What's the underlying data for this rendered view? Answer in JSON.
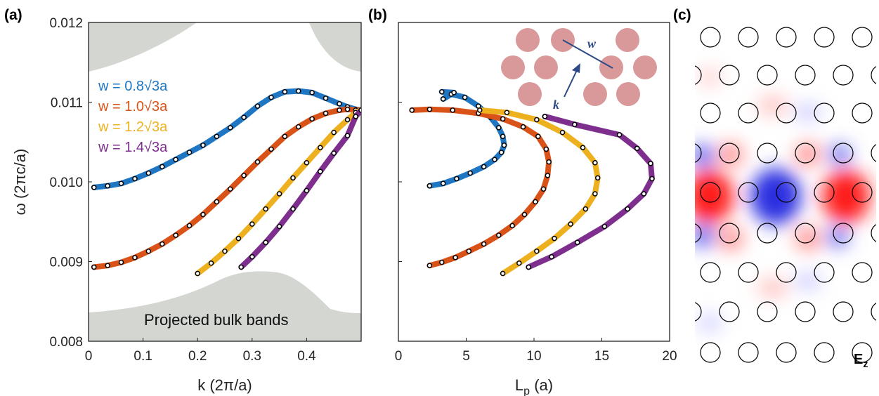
{
  "panels": {
    "a": "(a)",
    "b": "(b)",
    "c": "(c)"
  },
  "colors": {
    "w08": "#1f77c4",
    "w10": "#d95319",
    "w12": "#edb120",
    "w14": "#7e2f8e",
    "bulk": "#d4d6d1"
  },
  "chart_data": [
    {
      "panel": "(a)",
      "type": "line",
      "xlabel": "k (2π/a)",
      "ylabel": "ω (2πc/a)",
      "xlim": [
        0,
        0.5
      ],
      "ylim": [
        0.008,
        0.012
      ],
      "xticks": [
        "0",
        "0.1",
        "0.2",
        "0.3",
        "0.4"
      ],
      "yticks": [
        "0.008",
        "0.009",
        "0.010",
        "0.011",
        "0.012"
      ],
      "annotation": "Projected bulk bands",
      "series": [
        {
          "name": "w = 0.8√3a",
          "color": "#1f77c4",
          "x": [
            0.01,
            0.035,
            0.06,
            0.085,
            0.11,
            0.135,
            0.16,
            0.185,
            0.21,
            0.235,
            0.26,
            0.285,
            0.31,
            0.335,
            0.36,
            0.385,
            0.41,
            0.435,
            0.46,
            0.475,
            0.49,
            0.5
          ],
          "y": [
            0.00993,
            0.00995,
            0.00998,
            0.01004,
            0.01011,
            0.01019,
            0.01028,
            0.01037,
            0.01046,
            0.01057,
            0.01068,
            0.01081,
            0.01095,
            0.01106,
            0.01113,
            0.01114,
            0.01112,
            0.01105,
            0.01098,
            0.01094,
            0.01091,
            0.0109
          ]
        },
        {
          "name": "w = 1.0√3a",
          "color": "#d95319",
          "x": [
            0.01,
            0.035,
            0.06,
            0.085,
            0.11,
            0.135,
            0.16,
            0.185,
            0.21,
            0.235,
            0.26,
            0.285,
            0.31,
            0.335,
            0.36,
            0.385,
            0.41,
            0.435,
            0.46,
            0.475,
            0.49,
            0.5
          ],
          "y": [
            0.00893,
            0.00895,
            0.00899,
            0.00905,
            0.00913,
            0.00922,
            0.00933,
            0.00945,
            0.00959,
            0.00975,
            0.00991,
            0.01008,
            0.01025,
            0.01041,
            0.01057,
            0.01069,
            0.01079,
            0.01086,
            0.0109,
            0.01091,
            0.0109,
            0.0109
          ]
        },
        {
          "name": "w = 1.2√3a",
          "color": "#edb120",
          "x": [
            0.2,
            0.225,
            0.25,
            0.275,
            0.3,
            0.325,
            0.35,
            0.375,
            0.4,
            0.425,
            0.45,
            0.475,
            0.49,
            0.5
          ],
          "y": [
            0.00885,
            0.00898,
            0.00913,
            0.00929,
            0.00947,
            0.00966,
            0.00985,
            0.01005,
            0.01024,
            0.01043,
            0.01062,
            0.01078,
            0.01087,
            0.0109
          ]
        },
        {
          "name": "w = 1.4√3a",
          "color": "#7e2f8e",
          "x": [
            0.28,
            0.3,
            0.325,
            0.35,
            0.375,
            0.4,
            0.425,
            0.45,
            0.475,
            0.49,
            0.5
          ],
          "y": [
            0.00893,
            0.00906,
            0.00924,
            0.00944,
            0.00966,
            0.00989,
            0.01013,
            0.01036,
            0.01058,
            0.01082,
            0.0109
          ]
        }
      ]
    },
    {
      "panel": "(b)",
      "type": "line",
      "xlabel": "L",
      "xlabel_sub": "p",
      "xlabel_unit": " (a)",
      "xlim": [
        0,
        20
      ],
      "ylim": [
        0.008,
        0.012
      ],
      "xticks": [
        "0",
        "5",
        "10",
        "15",
        "20"
      ],
      "inset_labels": {
        "w": "w",
        "k": "k"
      },
      "series": [
        {
          "name": "w = 0.8√3a",
          "color": "#1f77c4",
          "x": [
            2.3,
            3.3,
            4.3,
            5.3,
            6.3,
            7.1,
            7.6,
            7.8,
            7.7,
            7.4,
            6.8,
            5.9,
            4.9,
            3.9,
            3.2,
            4.1,
            3.3
          ],
          "y": [
            0.00995,
            0.00998,
            0.01004,
            0.01011,
            0.01019,
            0.01028,
            0.01037,
            0.01046,
            0.01057,
            0.01068,
            0.01081,
            0.01095,
            0.01106,
            0.0111,
            0.01113,
            0.01112,
            0.01104
          ]
        },
        {
          "name": "w = 1.0√3a",
          "color": "#d95319",
          "x": [
            2.3,
            3.2,
            4.2,
            5.2,
            6.3,
            7.4,
            8.4,
            9.3,
            10.1,
            10.7,
            11.0,
            11.1,
            10.9,
            10.3,
            9.2,
            7.7,
            5.9,
            4.0,
            2.3,
            1.0
          ],
          "y": [
            0.00895,
            0.00899,
            0.00905,
            0.00913,
            0.00922,
            0.00933,
            0.00945,
            0.00959,
            0.00975,
            0.00991,
            0.01008,
            0.01025,
            0.01041,
            0.01057,
            0.01069,
            0.01079,
            0.01086,
            0.0109,
            0.01091,
            0.0109
          ]
        },
        {
          "name": "w = 1.2√3a",
          "color": "#edb120",
          "x": [
            7.7,
            8.9,
            10.2,
            11.5,
            12.7,
            13.8,
            14.5,
            14.7,
            14.5,
            13.6,
            12.1,
            10.2,
            8.0,
            6.0
          ],
          "y": [
            0.00885,
            0.00898,
            0.00913,
            0.00929,
            0.00947,
            0.00966,
            0.00985,
            0.01005,
            0.01024,
            0.01043,
            0.01062,
            0.01078,
            0.01087,
            0.0109
          ]
        },
        {
          "name": "w = 1.4√3a",
          "color": "#7e2f8e",
          "x": [
            9.6,
            11.3,
            13.2,
            15.2,
            16.9,
            18.1,
            18.7,
            18.6,
            17.6,
            16.3,
            13.0,
            10.8
          ],
          "y": [
            0.00893,
            0.00906,
            0.00924,
            0.00944,
            0.00966,
            0.00985,
            0.01004,
            0.01023,
            0.01042,
            0.01059,
            0.01072,
            0.01082
          ]
        }
      ]
    },
    {
      "panel": "(c)",
      "type": "heatmap",
      "field_label": "E",
      "field_label_sub": "z",
      "colormap": [
        "#2a2de0",
        "#ffffff",
        "#ff1e1e"
      ]
    }
  ]
}
